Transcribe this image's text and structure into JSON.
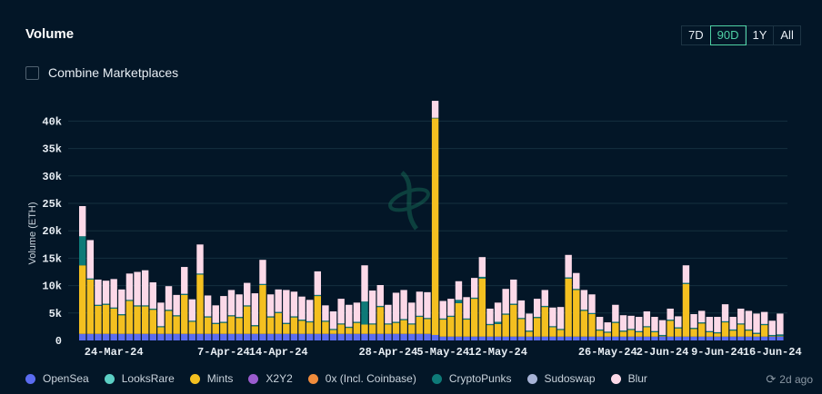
{
  "header": {
    "title": "Volume"
  },
  "ranges": [
    {
      "label": "7D",
      "active": false
    },
    {
      "label": "90D",
      "active": true
    },
    {
      "label": "1Y",
      "active": false
    },
    {
      "label": "All",
      "active": false
    }
  ],
  "combine": {
    "label": "Combine Marketplaces",
    "checked": false
  },
  "updated": {
    "icon": "refresh-clock-icon",
    "text": "2d ago"
  },
  "colors": {
    "OpenSea": "#5b6cf0",
    "LooksRare": "#5ccfc4",
    "Mints": "#f4c020",
    "X2Y2": "#9a5ccf",
    "0x (Incl. Coinbase)": "#f08c3c",
    "CryptoPunks": "#0e7a78",
    "Sudoswap": "#a7b3d6",
    "Blur": "#fcd9e8"
  },
  "chart_data": {
    "type": "bar",
    "stacked": true,
    "title": "Volume",
    "xlabel": "",
    "ylabel": "Volume (ETH)",
    "ylim": [
      0,
      40000
    ],
    "yticks": [
      {
        "v": 0,
        "label": "0"
      },
      {
        "v": 5000,
        "label": "5k"
      },
      {
        "v": 10000,
        "label": "10k"
      },
      {
        "v": 15000,
        "label": "15k"
      },
      {
        "v": 20000,
        "label": "20k"
      },
      {
        "v": 25000,
        "label": "25k"
      },
      {
        "v": 30000,
        "label": "30k"
      },
      {
        "v": 35000,
        "label": "35k"
      },
      {
        "v": 40000,
        "label": "40k"
      }
    ],
    "xticks": [
      {
        "i": 4,
        "label": "24-Mar-24"
      },
      {
        "i": 18,
        "label": "7-Apr-24"
      },
      {
        "i": 25,
        "label": "14-Apr-24"
      },
      {
        "i": 39,
        "label": "28-Apr-24"
      },
      {
        "i": 46,
        "label": "5-May-24"
      },
      {
        "i": 53,
        "label": "12-May-24"
      },
      {
        "i": 67,
        "label": "26-May-24"
      },
      {
        "i": 74,
        "label": "2-Jun-24"
      },
      {
        "i": 81,
        "label": "9-Jun-24"
      },
      {
        "i": 88,
        "label": "16-Jun-24"
      }
    ],
    "grid": true,
    "legend_placement": "bottom",
    "legend": [
      "OpenSea",
      "LooksRare",
      "Mints",
      "X2Y2",
      "0x (Incl. Coinbase)",
      "CryptoPunks",
      "Sudoswap",
      "Blur"
    ],
    "unit": "k ETH",
    "series": [
      {
        "name": "OpenSea",
        "values": [
          1.2,
          1.2,
          1.2,
          1.2,
          1.2,
          1.2,
          1.2,
          1.2,
          1.2,
          1.2,
          1.2,
          1.2,
          1.2,
          1.2,
          1.2,
          1.2,
          1.2,
          1.2,
          1.2,
          1.2,
          1.2,
          1.2,
          1.2,
          1.2,
          1.2,
          1.2,
          1.2,
          1.2,
          1.2,
          1.2,
          1.2,
          1.2,
          1.2,
          1.2,
          1.2,
          1.2,
          1.2,
          1.2,
          1.2,
          1.2,
          1.2,
          1.2,
          1.2,
          1.2,
          1.2,
          1.0,
          0.7,
          0.7,
          0.7,
          0.7,
          0.7,
          0.7,
          0.7,
          0.7,
          0.7,
          0.7,
          0.7,
          0.7,
          0.7,
          0.7,
          0.7,
          0.7,
          0.7,
          0.7,
          0.7,
          0.7,
          0.7,
          0.7,
          0.7,
          0.7,
          0.7,
          0.7,
          0.7,
          0.7,
          0.7,
          0.7,
          0.7,
          0.7,
          0.7,
          0.7,
          0.7,
          0.7,
          0.7,
          0.7,
          0.7,
          0.7,
          0.7,
          0.7,
          0.7,
          0.7
        ]
      },
      {
        "name": "Mints",
        "values": [
          12.5,
          9.9,
          5.1,
          5.3,
          4.6,
          3.4,
          6.0,
          5.0,
          5.0,
          4.4,
          1.2,
          4.2,
          3.2,
          7.1,
          2.2,
          10.8,
          3.0,
          1.8,
          2.0,
          3.2,
          2.9,
          5.0,
          1.4,
          8.9,
          3.0,
          3.8,
          1.8,
          3.0,
          2.4,
          2.1,
          6.9,
          2.2,
          0.7,
          1.7,
          1.1,
          2.0,
          1.7,
          1.7,
          4.9,
          1.7,
          2.0,
          2.5,
          1.7,
          3.1,
          2.7,
          39.5,
          3.1,
          3.6,
          6.1,
          3.1,
          6.9,
          10.6,
          2.1,
          2.3,
          4.0,
          5.8,
          3.2,
          0.9,
          3.4,
          5.4,
          1.7,
          1.2,
          10.6,
          8.5,
          4.7,
          4.1,
          1.1,
          0.7,
          2.5,
          0.9,
          1.2,
          0.8,
          1.7,
          0.8,
          0.1,
          2.9,
          1.5,
          9.6,
          1.4,
          2.4,
          0.8,
          0.6,
          2.6,
          1.1,
          2.2,
          1.1,
          0.5,
          2.1,
          0.1,
          0.1
        ]
      },
      {
        "name": "CryptoPunks",
        "values": [
          5.3,
          0.2,
          0.2,
          0.2,
          0.2,
          0.2,
          0.2,
          0.2,
          0.2,
          0.2,
          0.2,
          0.2,
          0.2,
          0.2,
          0.2,
          0.2,
          0.2,
          0.2,
          0.2,
          0.2,
          0.2,
          0.2,
          0.2,
          0.2,
          0.2,
          0.2,
          0.2,
          0.2,
          0.2,
          0.2,
          0.2,
          0.2,
          0.2,
          0.2,
          0.2,
          0.2,
          4.2,
          0.2,
          0.2,
          0.2,
          0.2,
          0.2,
          0.2,
          0.2,
          0.2,
          0.1,
          0.2,
          0.2,
          0.6,
          0.2,
          0.2,
          0.3,
          0.2,
          0.4,
          0.2,
          0.2,
          0.2,
          0.2,
          0.2,
          0.2,
          0.2,
          0.2,
          0.2,
          0.2,
          0.2,
          0.2,
          0.2,
          0.2,
          0.2,
          0.2,
          0.2,
          0.2,
          0.2,
          0.2,
          0.2,
          0.2,
          0.2,
          0.2,
          0.2,
          0.2,
          0.2,
          0.2,
          0.2,
          0.2,
          0.2,
          0.2,
          0.2,
          0.2,
          0.2,
          0.3
        ]
      },
      {
        "name": "Blur",
        "values": [
          5.5,
          7.0,
          4.6,
          4.2,
          5.2,
          4.5,
          4.8,
          6.1,
          6.4,
          4.8,
          4.3,
          4.3,
          3.7,
          4.9,
          3.9,
          5.3,
          3.8,
          3.2,
          4.7,
          4.6,
          4.1,
          4.1,
          5.8,
          4.4,
          4.0,
          4.1,
          6.0,
          4.5,
          4.2,
          3.9,
          4.3,
          2.8,
          3.2,
          4.5,
          4.0,
          3.5,
          6.6,
          6.0,
          3.8,
          3.4,
          5.3,
          5.3,
          3.8,
          4.4,
          4.7,
          3.1,
          3.2,
          3.1,
          3.4,
          3.9,
          3.6,
          3.6,
          2.8,
          3.5,
          4.5,
          4.4,
          3.2,
          3.1,
          3.3,
          2.9,
          3.4,
          4.0,
          4.1,
          2.9,
          3.6,
          3.4,
          2.3,
          1.7,
          3.1,
          2.8,
          2.4,
          2.6,
          2.7,
          2.6,
          2.7,
          2.0,
          2.0,
          3.2,
          2.5,
          2.1,
          2.6,
          2.8,
          3.1,
          2.3,
          2.7,
          3.4,
          3.5,
          2.2,
          2.6,
          3.8
        ]
      }
    ]
  }
}
